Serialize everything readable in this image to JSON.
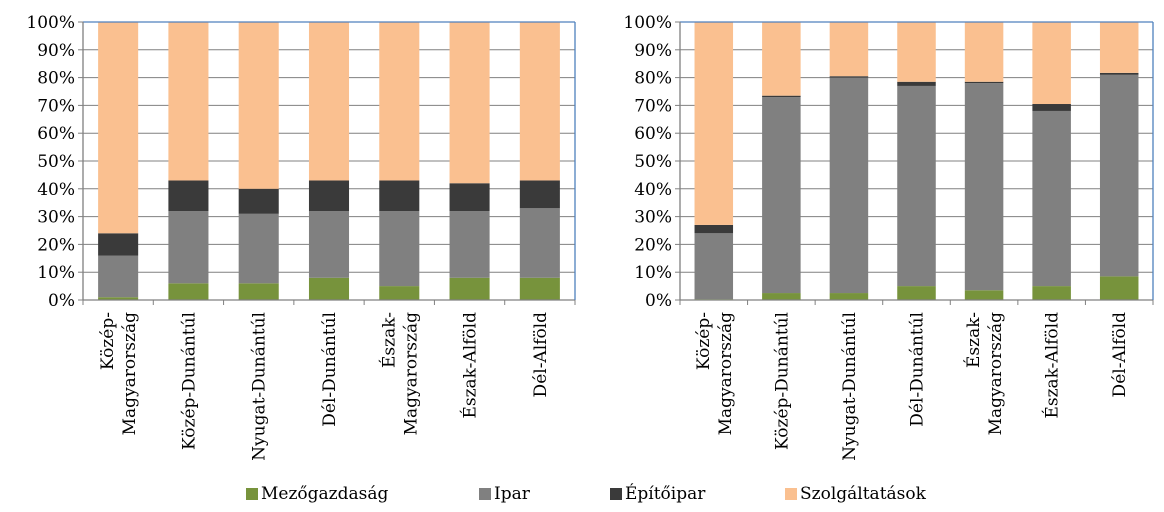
{
  "colors": {
    "Mezőgazdaság": "#77933c",
    "Ipar": "#808080",
    "Építőipar": "#3a3a3a",
    "Szolgáltatások": "#fac090",
    "axis": "#4f81bd",
    "gridline": "#808080"
  },
  "legend": [
    "Mezőgazdaság",
    "Ipar",
    "Építőipar",
    "Szolgáltatások"
  ],
  "chart_data": [
    {
      "type": "bar",
      "stacked": "percent",
      "categories": [
        [
          "Közép-",
          "Magyarország"
        ],
        [
          "Közép-Dunántúl"
        ],
        [
          "Nyugat-Dunántúl"
        ],
        [
          "Dél-Dunántúl"
        ],
        [
          "Észak-",
          "Magyarország"
        ],
        [
          "Észak-Alföld"
        ],
        [
          "Dél-Alföld"
        ]
      ],
      "series": [
        {
          "name": "Mezőgazdaság",
          "values": [
            1,
            6,
            6,
            8,
            5,
            8,
            8
          ]
        },
        {
          "name": "Ipar",
          "values": [
            15,
            26,
            25,
            24,
            27,
            24,
            25
          ]
        },
        {
          "name": "Építőipar",
          "values": [
            8,
            11,
            9,
            11,
            11,
            10,
            10
          ]
        },
        {
          "name": "Szolgáltatások",
          "values": [
            76,
            57,
            60,
            57,
            57,
            58,
            57
          ]
        }
      ],
      "yticks": [
        "0%",
        "10%",
        "20%",
        "30%",
        "40%",
        "50%",
        "60%",
        "70%",
        "80%",
        "90%",
        "100%"
      ],
      "ylim": [
        0,
        100
      ],
      "grid": true,
      "legend_position": "bottom"
    },
    {
      "type": "bar",
      "stacked": "percent",
      "categories": [
        [
          "Közép-",
          "Magyarország"
        ],
        [
          "Közép-Dunántúl"
        ],
        [
          "Nyugat-Dunántúl"
        ],
        [
          "Dél-Dunántúl"
        ],
        [
          "Észak-",
          "Magyarország"
        ],
        [
          "Észak-Alföld"
        ],
        [
          "Dél-Alföld"
        ]
      ],
      "series": [
        {
          "name": "Mezőgazdaság",
          "values": [
            0.3,
            2.5,
            2.5,
            5,
            3.5,
            5,
            8.5
          ]
        },
        {
          "name": "Ipar",
          "values": [
            23.7,
            70.5,
            77.5,
            72,
            74.5,
            63,
            72.5
          ]
        },
        {
          "name": "Építőipar",
          "values": [
            3,
            0.5,
            0.5,
            1.5,
            0.5,
            2.5,
            0.7
          ]
        },
        {
          "name": "Szolgáltatások",
          "values": [
            73,
            26.5,
            19.5,
            21.5,
            21.5,
            29.5,
            18.3
          ]
        }
      ],
      "yticks": [
        "0%",
        "10%",
        "20%",
        "30%",
        "40%",
        "50%",
        "60%",
        "70%",
        "80%",
        "90%",
        "100%"
      ],
      "ylim": [
        0,
        100
      ],
      "grid": true,
      "legend_position": "bottom"
    }
  ]
}
